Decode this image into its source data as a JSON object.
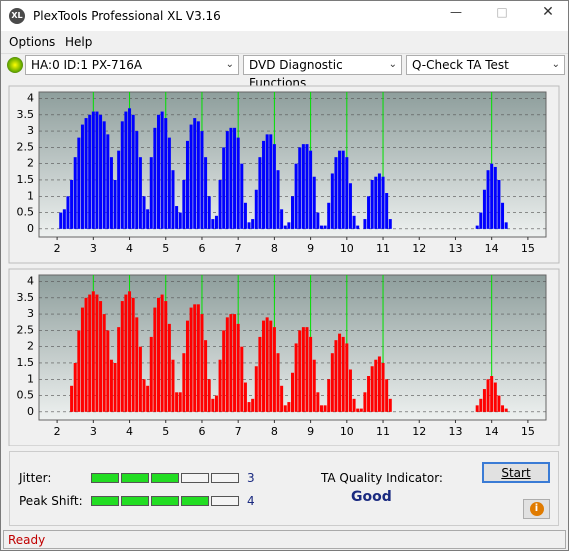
{
  "window": {
    "title": "PlexTools Professional XL V3.16"
  },
  "menu": [
    "Options",
    "Help"
  ],
  "toolbar": {
    "drive": "HA:0 ID:1  PX-716A",
    "function": "DVD Diagnostic Functions",
    "test": "Q-Check TA Test"
  },
  "chart_data": [
    {
      "type": "bar",
      "color": "#0000ff",
      "x": [
        2.1,
        2.2,
        2.3,
        2.4,
        2.5,
        2.6,
        2.7,
        2.8,
        2.9,
        3.0,
        3.1,
        3.2,
        3.3,
        3.4,
        3.5,
        3.6,
        3.7,
        3.8,
        3.9,
        4.0,
        4.1,
        4.2,
        4.3,
        4.4,
        4.5,
        4.6,
        4.7,
        4.8,
        4.9,
        5.0,
        5.1,
        5.2,
        5.3,
        5.4,
        5.5,
        5.6,
        5.7,
        5.8,
        5.9,
        6.0,
        6.1,
        6.2,
        6.3,
        6.4,
        6.5,
        6.6,
        6.7,
        6.8,
        6.9,
        7.0,
        7.1,
        7.2,
        7.3,
        7.4,
        7.5,
        7.6,
        7.7,
        7.8,
        7.9,
        8.0,
        8.1,
        8.2,
        8.3,
        8.4,
        8.5,
        8.6,
        8.7,
        8.8,
        8.9,
        9.0,
        9.1,
        9.2,
        9.3,
        9.4,
        9.5,
        9.6,
        9.7,
        9.8,
        9.9,
        10.0,
        10.1,
        10.2,
        10.3,
        10.4,
        10.5,
        10.6,
        10.7,
        10.8,
        10.9,
        11.0,
        11.1,
        11.2,
        13.6,
        13.7,
        13.8,
        13.9,
        14.0,
        14.1,
        14.2,
        14.3,
        14.4
      ],
      "values": [
        0.5,
        0.6,
        1.0,
        1.5,
        2.2,
        2.8,
        3.2,
        3.4,
        3.5,
        3.6,
        3.6,
        3.5,
        3.3,
        2.9,
        2.2,
        1.5,
        2.4,
        3.3,
        3.6,
        3.7,
        3.5,
        3.0,
        2.2,
        1.0,
        0.6,
        2.2,
        3.1,
        3.5,
        3.6,
        3.4,
        2.8,
        1.8,
        0.7,
        0.5,
        1.5,
        2.7,
        3.2,
        3.4,
        3.3,
        3.0,
        2.2,
        1.0,
        0.3,
        0.4,
        1.5,
        2.5,
        3.0,
        3.1,
        3.1,
        2.8,
        2.0,
        0.8,
        0.2,
        0.3,
        1.2,
        2.2,
        2.7,
        2.9,
        2.9,
        2.6,
        1.8,
        0.6,
        0.1,
        0.2,
        1.0,
        2.0,
        2.5,
        2.6,
        2.6,
        2.4,
        1.6,
        0.5,
        0.1,
        0.1,
        0.8,
        1.7,
        2.2,
        2.4,
        2.4,
        2.2,
        1.4,
        0.4,
        0.1,
        0,
        0.3,
        1.0,
        1.5,
        1.6,
        1.7,
        1.6,
        1.1,
        0.3,
        0.1,
        0.5,
        1.2,
        1.8,
        2.0,
        1.9,
        1.5,
        0.8,
        0.2
      ],
      "markers": [
        3,
        4,
        5,
        6,
        7,
        8,
        9,
        10,
        11,
        14
      ],
      "marker_color": "#00e000",
      "xlim": [
        1.5,
        15.5
      ],
      "ylim": [
        -0.25,
        4.2
      ],
      "xticks": [
        2,
        3,
        4,
        5,
        6,
        7,
        8,
        9,
        10,
        11,
        12,
        13,
        14,
        15
      ],
      "yticks": [
        0,
        0.5,
        1,
        1.5,
        2,
        2.5,
        3,
        3.5,
        4
      ],
      "grid": true
    },
    {
      "type": "bar",
      "color": "#ff0000",
      "x": [
        2.1,
        2.2,
        2.3,
        2.4,
        2.5,
        2.6,
        2.7,
        2.8,
        2.9,
        3.0,
        3.1,
        3.2,
        3.3,
        3.4,
        3.5,
        3.6,
        3.7,
        3.8,
        3.9,
        4.0,
        4.1,
        4.2,
        4.3,
        4.4,
        4.5,
        4.6,
        4.7,
        4.8,
        4.9,
        5.0,
        5.1,
        5.2,
        5.3,
        5.4,
        5.5,
        5.6,
        5.7,
        5.8,
        5.9,
        6.0,
        6.1,
        6.2,
        6.3,
        6.4,
        6.5,
        6.6,
        6.7,
        6.8,
        6.9,
        7.0,
        7.1,
        7.2,
        7.3,
        7.4,
        7.5,
        7.6,
        7.7,
        7.8,
        7.9,
        8.0,
        8.1,
        8.2,
        8.3,
        8.4,
        8.5,
        8.6,
        8.7,
        8.8,
        8.9,
        9.0,
        9.1,
        9.2,
        9.3,
        9.4,
        9.5,
        9.6,
        9.7,
        9.8,
        9.9,
        10.0,
        10.1,
        10.2,
        10.3,
        10.4,
        10.5,
        10.6,
        10.7,
        10.8,
        10.9,
        11.0,
        11.1,
        11.2,
        13.6,
        13.7,
        13.8,
        13.9,
        14.0,
        14.1,
        14.2,
        14.3,
        14.4
      ],
      "values": [
        0,
        0,
        0,
        0.8,
        1.5,
        2.5,
        3.2,
        3.5,
        3.6,
        3.7,
        3.6,
        3.4,
        3.0,
        2.5,
        1.6,
        1.5,
        2.6,
        3.4,
        3.6,
        3.7,
        3.5,
        2.9,
        2.0,
        1.0,
        0.8,
        2.3,
        3.2,
        3.5,
        3.6,
        3.4,
        2.7,
        1.6,
        0.6,
        0.6,
        1.8,
        2.8,
        3.2,
        3.3,
        3.3,
        3.0,
        2.2,
        1.0,
        0.4,
        0.5,
        1.6,
        2.5,
        2.9,
        3.0,
        3.0,
        2.7,
        2.0,
        0.9,
        0.3,
        0.4,
        1.4,
        2.3,
        2.8,
        2.9,
        2.8,
        2.6,
        1.8,
        0.8,
        0.2,
        0.3,
        1.2,
        2.1,
        2.5,
        2.6,
        2.6,
        2.3,
        1.6,
        0.6,
        0.2,
        0.2,
        1.0,
        1.8,
        2.2,
        2.4,
        2.3,
        2.1,
        1.3,
        0.4,
        0.1,
        0.1,
        0.6,
        1.1,
        1.4,
        1.6,
        1.7,
        1.5,
        1.0,
        0.4,
        0.2,
        0.4,
        0.7,
        1.0,
        1.1,
        0.9,
        0.5,
        0.2,
        0.1
      ],
      "markers": [
        3,
        4,
        5,
        6,
        7,
        8,
        9,
        10,
        11,
        14
      ],
      "marker_color": "#00e000",
      "xlim": [
        1.5,
        15.5
      ],
      "ylim": [
        -0.25,
        4.2
      ],
      "xticks": [
        2,
        3,
        4,
        5,
        6,
        7,
        8,
        9,
        10,
        11,
        12,
        13,
        14,
        15
      ],
      "yticks": [
        0,
        0.5,
        1,
        1.5,
        2,
        2.5,
        3,
        3.5,
        4
      ],
      "grid": true
    }
  ],
  "meters": [
    {
      "label": "Jitter:",
      "value": 3
    },
    {
      "label": "Peak Shift:",
      "value": 4
    }
  ],
  "quality": {
    "label": "TA Quality Indicator:",
    "value": "Good"
  },
  "buttons": {
    "start": "Start"
  },
  "status": "Ready"
}
